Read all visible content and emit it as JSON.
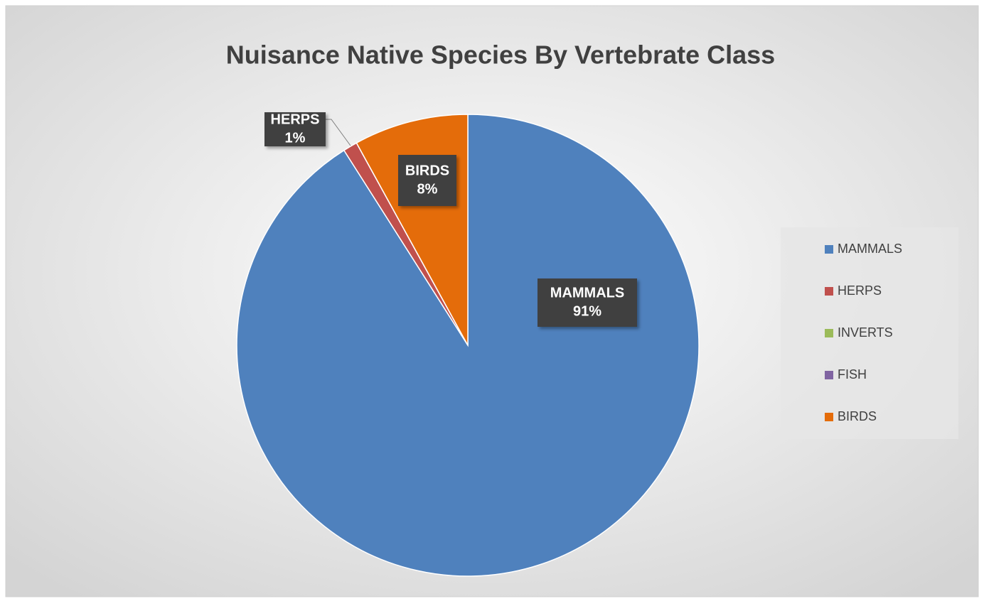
{
  "chart_data": {
    "type": "pie",
    "title": "Nuisance Native Species By Vertebrate Class",
    "categories": [
      "MAMMALS",
      "HERPS",
      "INVERTS",
      "FISH",
      "BIRDS"
    ],
    "values": [
      91,
      1,
      0,
      0,
      8
    ],
    "value_labels": [
      "91%",
      "1%",
      null,
      null,
      "8%"
    ],
    "colors": [
      "#4f81bd",
      "#c0504d",
      "#9bbb59",
      "#8064a2",
      "#e46c0a"
    ],
    "legend": "right"
  }
}
